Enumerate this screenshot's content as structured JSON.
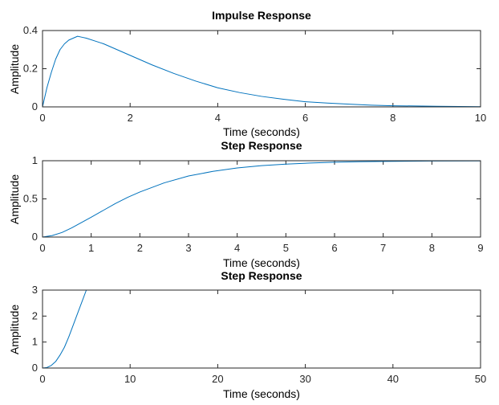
{
  "chart_data": [
    {
      "type": "line",
      "title": "Impulse Response",
      "xlabel": "Time (seconds)",
      "ylabel": "Amplitude",
      "xlim": [
        0,
        10
      ],
      "ylim": [
        0,
        0.4
      ],
      "xticks": [
        "0",
        "2",
        "4",
        "6",
        "8",
        "10"
      ],
      "yticks": [
        "0",
        "0.2",
        "0.4"
      ],
      "grid": false,
      "series": [
        {
          "color": "#0072BD",
          "x": [
            0,
            0.1,
            0.2,
            0.3,
            0.4,
            0.5,
            0.6,
            0.7,
            0.8,
            0.9,
            1.0,
            1.2,
            1.4,
            1.6,
            1.8,
            2.0,
            2.5,
            3.0,
            3.5,
            4.0,
            4.5,
            5.0,
            5.5,
            6.0,
            6.5,
            7.0,
            7.5,
            8.0,
            9.0,
            10.0
          ],
          "y": [
            0,
            0.1,
            0.18,
            0.25,
            0.3,
            0.33,
            0.35,
            0.36,
            0.37,
            0.365,
            0.36,
            0.345,
            0.33,
            0.31,
            0.29,
            0.27,
            0.22,
            0.175,
            0.135,
            0.1,
            0.075,
            0.055,
            0.04,
            0.027,
            0.02,
            0.014,
            0.009,
            0.006,
            0.003,
            0.001
          ]
        }
      ]
    },
    {
      "type": "line",
      "title": "Step Response",
      "xlabel": "Time (seconds)",
      "ylabel": "Amplitude",
      "xlim": [
        0,
        9
      ],
      "ylim": [
        0,
        1
      ],
      "xticks": [
        "0",
        "1",
        "2",
        "3",
        "4",
        "5",
        "6",
        "7",
        "8",
        "9"
      ],
      "yticks": [
        "0",
        "0.5",
        "1"
      ],
      "grid": false,
      "reference_line": {
        "y": 1,
        "color": "#000000",
        "style": "dotted"
      },
      "series": [
        {
          "color": "#0072BD",
          "x": [
            0,
            0.2,
            0.4,
            0.6,
            0.8,
            1.0,
            1.25,
            1.5,
            1.75,
            2.0,
            2.5,
            3.0,
            3.5,
            4.0,
            4.5,
            5.0,
            5.5,
            6.0,
            6.5,
            7.0,
            7.5,
            8.0,
            9.0
          ],
          "y": [
            0,
            0.02,
            0.06,
            0.12,
            0.19,
            0.26,
            0.35,
            0.44,
            0.52,
            0.59,
            0.71,
            0.8,
            0.86,
            0.905,
            0.935,
            0.955,
            0.97,
            0.98,
            0.987,
            0.991,
            0.994,
            0.996,
            0.998
          ]
        }
      ]
    },
    {
      "type": "line",
      "title": "Step Response",
      "xlabel": "Time (seconds)",
      "ylabel": "Amplitude",
      "xlim": [
        0,
        50
      ],
      "ylim": [
        0,
        3
      ],
      "xticks": [
        "0",
        "10",
        "20",
        "30",
        "40",
        "50"
      ],
      "yticks": [
        "0",
        "1",
        "2",
        "3"
      ],
      "grid": false,
      "series": [
        {
          "color": "#0072BD",
          "x": [
            0,
            0.5,
            1.0,
            1.5,
            2.0,
            2.5,
            3.0,
            3.5,
            4.0,
            4.5,
            5.0
          ],
          "y": [
            0,
            0.02,
            0.1,
            0.25,
            0.5,
            0.8,
            1.2,
            1.65,
            2.1,
            2.55,
            3.0
          ]
        }
      ]
    }
  ]
}
